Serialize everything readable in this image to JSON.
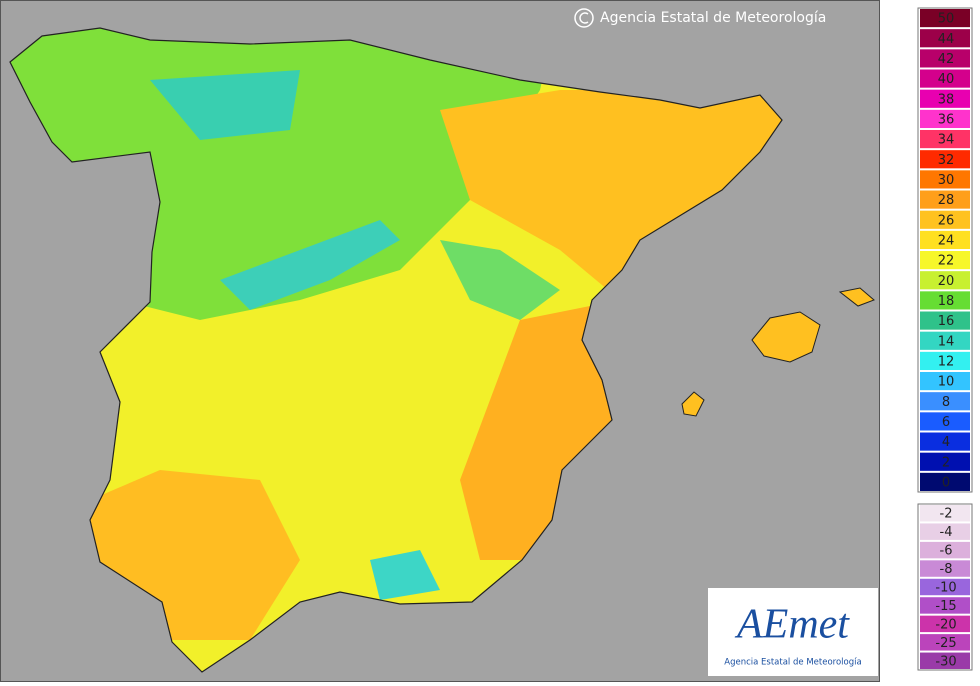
{
  "header": {
    "copyright": "Agencia Estatal de Meteorología"
  },
  "legend": {
    "positive": [
      {
        "value": 50,
        "color": "#7a0026"
      },
      {
        "value": 44,
        "color": "#9c0049"
      },
      {
        "value": 42,
        "color": "#b8006a"
      },
      {
        "value": 40,
        "color": "#d4008c"
      },
      {
        "value": 38,
        "color": "#e800b0"
      },
      {
        "value": 36,
        "color": "#ff33cc"
      },
      {
        "value": 34,
        "color": "#ff3366"
      },
      {
        "value": 32,
        "color": "#ff2a00"
      },
      {
        "value": 30,
        "color": "#ff7700"
      },
      {
        "value": 28,
        "color": "#ff9f1a"
      },
      {
        "value": 26,
        "color": "#ffc21f"
      },
      {
        "value": 24,
        "color": "#ffe020"
      },
      {
        "value": 22,
        "color": "#f7f72a"
      },
      {
        "value": 20,
        "color": "#c8f030"
      },
      {
        "value": 18,
        "color": "#66dd33"
      },
      {
        "value": 16,
        "color": "#2fc28a"
      },
      {
        "value": 14,
        "color": "#33d6c2"
      },
      {
        "value": 12,
        "color": "#33f0f0"
      },
      {
        "value": 10,
        "color": "#33c4ff"
      },
      {
        "value": 8,
        "color": "#3a8fff"
      },
      {
        "value": 6,
        "color": "#1a5cff"
      },
      {
        "value": 4,
        "color": "#0a2ee0"
      },
      {
        "value": 2,
        "color": "#0010b0"
      },
      {
        "value": 0,
        "color": "#000a70"
      }
    ],
    "negative": [
      {
        "value": -2,
        "color": "#f2e6f0"
      },
      {
        "value": -4,
        "color": "#e8cfe6"
      },
      {
        "value": -6,
        "color": "#dcb0dc"
      },
      {
        "value": -8,
        "color": "#c98ad6"
      },
      {
        "value": -10,
        "color": "#9966dd"
      },
      {
        "value": -15,
        "color": "#b04fc8"
      },
      {
        "value": -20,
        "color": "#cc33aa"
      },
      {
        "value": -25,
        "color": "#bb44bb"
      },
      {
        "value": -30,
        "color": "#9a3aa8"
      }
    ]
  },
  "logo": {
    "name": "AEmet",
    "subtitle": "Agencia Estatal de Meteorología"
  }
}
